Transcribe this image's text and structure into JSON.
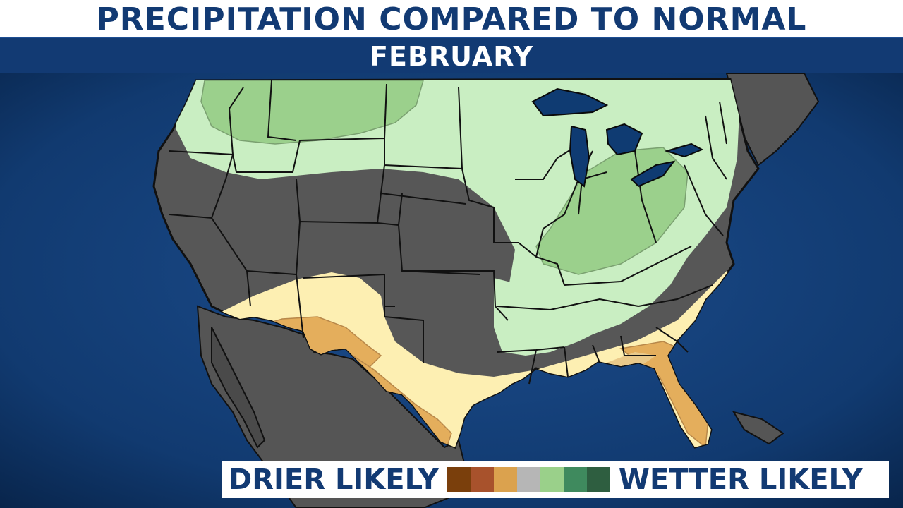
{
  "title": "PRECIPITATION COMPARED TO NORMAL",
  "subtitle": "FEBRUARY",
  "legend": {
    "left_label": "DRIER LIKELY",
    "right_label": "WETTER LIKELY",
    "swatch_colors": [
      "#7a3f0c",
      "#a8522c",
      "#dba24e",
      "#b6b6b6",
      "#9ad08a",
      "#3f8a5e",
      "#2e5e40"
    ]
  },
  "colors": {
    "background_ocean": "#0c2f5e",
    "land_neutral": "#575757",
    "wet_light": "#c9eec2",
    "wet_medium": "#9bd08c",
    "dry_light": "#fdefb2",
    "dry_medium": "#e4ae5c",
    "header_blue": "#123a73"
  }
}
